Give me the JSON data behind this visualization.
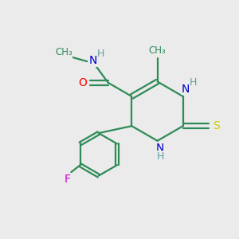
{
  "background_color": "#ebebeb",
  "atom_colors": {
    "N": "#0000cd",
    "O": "#ff0000",
    "S": "#cccc00",
    "F": "#cc00cc",
    "C": "#2e8b57",
    "H": "#5f9ea0"
  },
  "figsize": [
    3.0,
    3.0
  ],
  "dpi": 100
}
